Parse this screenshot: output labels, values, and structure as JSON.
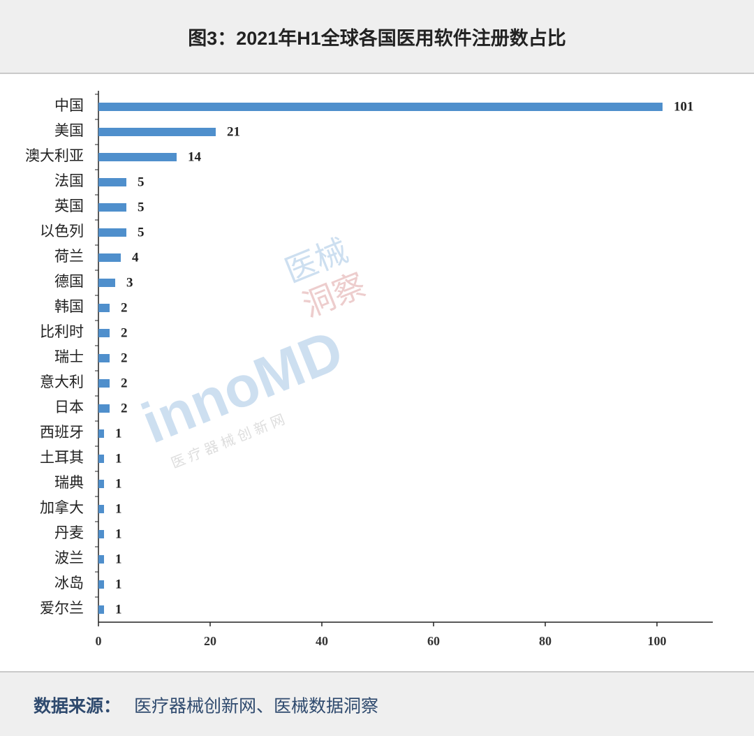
{
  "chart_data": {
    "type": "barh",
    "title": "图3：2021年H1全球各国医用软件注册数占比",
    "categories": [
      "中国",
      "美国",
      "澳大利亚",
      "法国",
      "英国",
      "以色列",
      "荷兰",
      "德国",
      "韩国",
      "比利时",
      "瑞士",
      "意大利",
      "日本",
      "西班牙",
      "土耳其",
      "瑞典",
      "加拿大",
      "丹麦",
      "波兰",
      "冰岛",
      "爱尔兰"
    ],
    "values": [
      101,
      21,
      14,
      5,
      5,
      5,
      4,
      3,
      2,
      2,
      2,
      2,
      2,
      1,
      1,
      1,
      1,
      1,
      1,
      1,
      1
    ],
    "color": "#4f8fcc",
    "xlim": [
      0,
      110
    ],
    "xticks": [
      0,
      20,
      40,
      60,
      80,
      100
    ],
    "grid": false,
    "source_label": "数据来源：",
    "source_text": "医疗器械创新网、医械数据洞察",
    "watermark": {
      "brand": "innoMD",
      "name_line1": "医械",
      "name_line2": "洞察",
      "tagline": "医 疗 器 械 创 新 网"
    }
  }
}
